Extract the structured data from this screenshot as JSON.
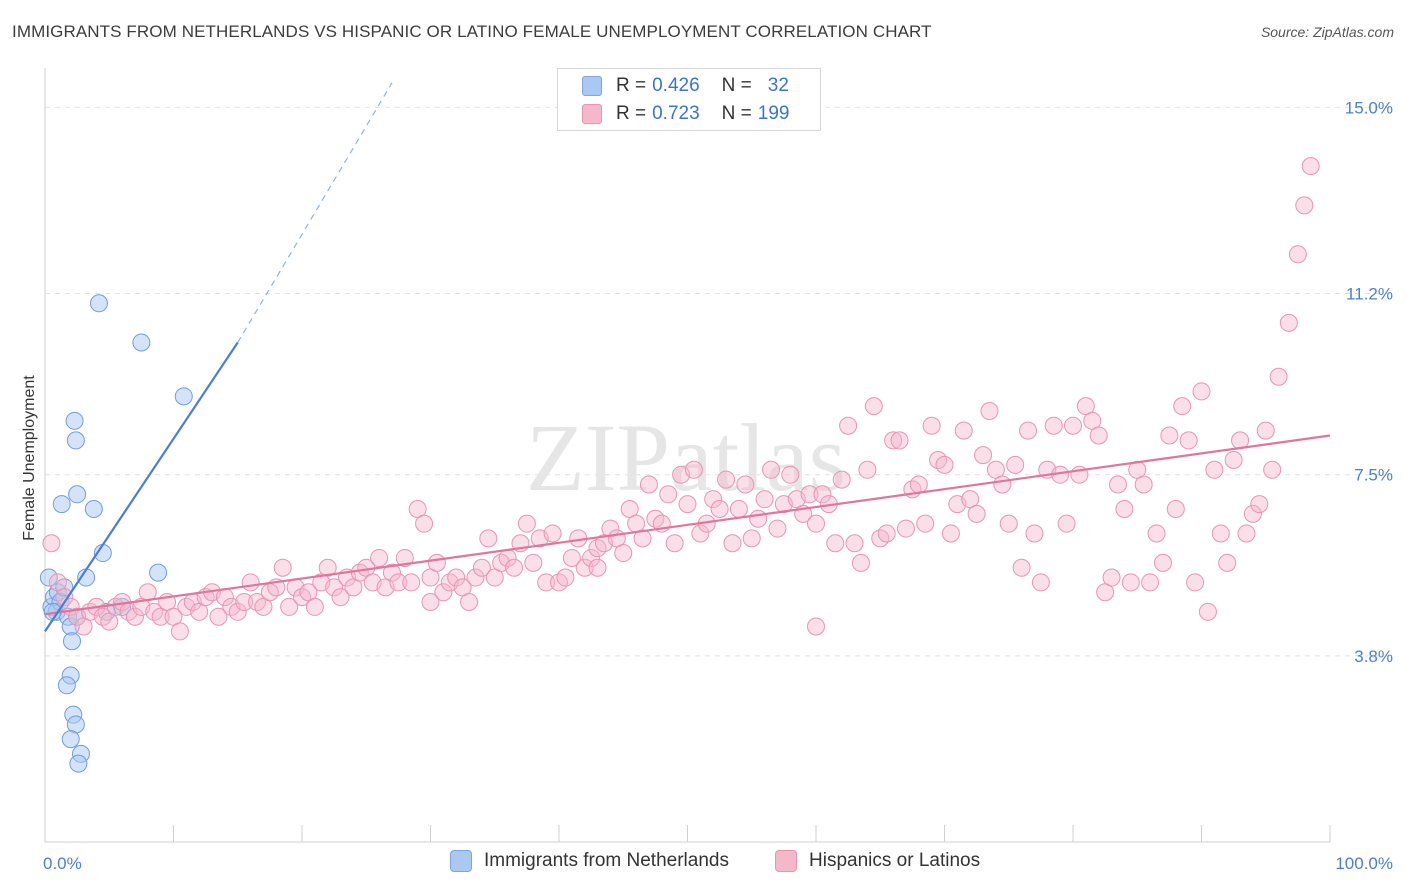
{
  "title": "IMMIGRANTS FROM NETHERLANDS VS HISPANIC OR LATINO FEMALE UNEMPLOYMENT CORRELATION CHART",
  "source": "Source: ZipAtlas.com",
  "watermark": "ZIPatlas",
  "legend": {
    "series1": {
      "r_label": "R =",
      "r_value": "0.426",
      "n_label": "N =",
      "n_value": "32",
      "color": "#aac8f2"
    },
    "series2": {
      "r_label": "R =",
      "r_value": "0.723",
      "n_label": "N =",
      "n_value": "199",
      "color": "#f5b8cb"
    }
  },
  "chart_data": {
    "type": "scatter",
    "title": "IMMIGRANTS FROM NETHERLANDS VS HISPANIC OR LATINO FEMALE UNEMPLOYMENT CORRELATION CHART",
    "xlabel": "",
    "ylabel": "Female Unemployment",
    "xlim": [
      0,
      100
    ],
    "ylim": [
      0,
      15.6
    ],
    "x_tick_labels": [
      "0.0%",
      "100.0%"
    ],
    "y_ticks": [
      3.8,
      7.5,
      11.2,
      15.0
    ],
    "y_tick_labels": [
      "3.8%",
      "7.5%",
      "11.2%",
      "15.0%"
    ],
    "series": [
      {
        "name": "Immigrants from Netherlands",
        "color": "#4a7fd4",
        "fill": "#aac8f2",
        "trend": {
          "x0": 0,
          "y0": 4.3,
          "x1": 15,
          "y1": 10.2,
          "dash_to_x": 27,
          "dash_to_y": 15.5
        },
        "points": [
          [
            0.3,
            5.4
          ],
          [
            0.5,
            4.8
          ],
          [
            0.7,
            5.0
          ],
          [
            0.9,
            4.7
          ],
          [
            1.0,
            5.1
          ],
          [
            1.2,
            4.9
          ],
          [
            1.5,
            5.2
          ],
          [
            1.8,
            4.6
          ],
          [
            2.0,
            4.4
          ],
          [
            2.1,
            4.1
          ],
          [
            2.3,
            8.6
          ],
          [
            2.4,
            8.2
          ],
          [
            2.5,
            7.1
          ],
          [
            1.3,
            6.9
          ],
          [
            3.8,
            6.8
          ],
          [
            4.5,
            5.9
          ],
          [
            3.2,
            5.4
          ],
          [
            8.8,
            5.5
          ],
          [
            7.5,
            10.2
          ],
          [
            4.2,
            11.0
          ],
          [
            10.8,
            9.1
          ],
          [
            2.5,
            4.6
          ],
          [
            2.0,
            3.4
          ],
          [
            1.7,
            3.2
          ],
          [
            2.2,
            2.6
          ],
          [
            2.4,
            2.4
          ],
          [
            2.0,
            2.1
          ],
          [
            2.8,
            1.8
          ],
          [
            2.6,
            1.6
          ],
          [
            6.0,
            4.8
          ],
          [
            4.8,
            4.7
          ],
          [
            0.6,
            4.7
          ]
        ]
      },
      {
        "name": "Hispanics or Latinos",
        "color": "#e3749a",
        "fill": "#f5b8cb",
        "trend": {
          "x0": 0,
          "y0": 4.65,
          "x1": 100,
          "y1": 8.3
        },
        "points": [
          [
            0.5,
            6.1
          ],
          [
            1.0,
            5.3
          ],
          [
            1.5,
            5.0
          ],
          [
            2.0,
            4.8
          ],
          [
            2.5,
            4.6
          ],
          [
            3.0,
            4.4
          ],
          [
            3.5,
            4.7
          ],
          [
            4.0,
            4.8
          ],
          [
            4.5,
            4.6
          ],
          [
            5.0,
            4.5
          ],
          [
            5.5,
            4.8
          ],
          [
            6.0,
            4.9
          ],
          [
            6.5,
            4.7
          ],
          [
            7.0,
            4.6
          ],
          [
            7.5,
            4.8
          ],
          [
            8.0,
            5.1
          ],
          [
            8.5,
            4.7
          ],
          [
            9.0,
            4.6
          ],
          [
            9.5,
            4.9
          ],
          [
            10.0,
            4.6
          ],
          [
            10.5,
            4.3
          ],
          [
            11.0,
            4.8
          ],
          [
            11.5,
            4.9
          ],
          [
            12.0,
            4.7
          ],
          [
            12.5,
            5.0
          ],
          [
            13.0,
            5.1
          ],
          [
            13.5,
            4.6
          ],
          [
            14.0,
            5.0
          ],
          [
            14.5,
            4.8
          ],
          [
            15.0,
            4.7
          ],
          [
            15.5,
            4.9
          ],
          [
            16.0,
            5.3
          ],
          [
            16.5,
            4.9
          ],
          [
            17.0,
            4.8
          ],
          [
            17.5,
            5.1
          ],
          [
            18.0,
            5.2
          ],
          [
            18.5,
            5.6
          ],
          [
            19.0,
            4.8
          ],
          [
            19.5,
            5.2
          ],
          [
            20.0,
            5.0
          ],
          [
            20.5,
            5.1
          ],
          [
            21.0,
            4.8
          ],
          [
            21.5,
            5.3
          ],
          [
            22.0,
            5.6
          ],
          [
            22.5,
            5.2
          ],
          [
            23.0,
            5.0
          ],
          [
            23.5,
            5.4
          ],
          [
            24.0,
            5.2
          ],
          [
            24.5,
            5.5
          ],
          [
            25.0,
            5.6
          ],
          [
            25.5,
            5.3
          ],
          [
            26.0,
            5.8
          ],
          [
            26.5,
            5.2
          ],
          [
            27.0,
            5.5
          ],
          [
            27.5,
            5.3
          ],
          [
            28.0,
            5.8
          ],
          [
            28.5,
            5.3
          ],
          [
            29.0,
            6.8
          ],
          [
            29.5,
            6.5
          ],
          [
            30.0,
            5.4
          ],
          [
            30.5,
            5.7
          ],
          [
            31.0,
            5.1
          ],
          [
            31.5,
            5.3
          ],
          [
            32.0,
            5.4
          ],
          [
            32.5,
            5.2
          ],
          [
            33.0,
            4.9
          ],
          [
            33.5,
            5.4
          ],
          [
            34.0,
            5.6
          ],
          [
            34.5,
            6.2
          ],
          [
            35.0,
            5.4
          ],
          [
            35.5,
            5.7
          ],
          [
            36.0,
            5.8
          ],
          [
            36.5,
            5.6
          ],
          [
            37.0,
            6.1
          ],
          [
            37.5,
            6.5
          ],
          [
            38.0,
            5.7
          ],
          [
            38.5,
            6.2
          ],
          [
            39.0,
            5.3
          ],
          [
            39.5,
            6.3
          ],
          [
            40.0,
            5.3
          ],
          [
            40.5,
            5.4
          ],
          [
            41.0,
            5.8
          ],
          [
            41.5,
            6.2
          ],
          [
            42.0,
            5.6
          ],
          [
            42.5,
            5.8
          ],
          [
            43.0,
            6.0
          ],
          [
            43.5,
            6.1
          ],
          [
            44.0,
            6.4
          ],
          [
            44.5,
            6.2
          ],
          [
            45.0,
            5.9
          ],
          [
            45.5,
            6.8
          ],
          [
            46.0,
            6.5
          ],
          [
            46.5,
            6.2
          ],
          [
            47.0,
            7.3
          ],
          [
            47.5,
            6.6
          ],
          [
            48.0,
            6.5
          ],
          [
            48.5,
            7.1
          ],
          [
            49.0,
            6.1
          ],
          [
            49.5,
            7.5
          ],
          [
            50.0,
            6.9
          ],
          [
            50.5,
            7.6
          ],
          [
            51.0,
            6.3
          ],
          [
            51.5,
            6.5
          ],
          [
            52.0,
            7.0
          ],
          [
            52.5,
            6.8
          ],
          [
            53.0,
            7.4
          ],
          [
            53.5,
            6.1
          ],
          [
            54.0,
            6.8
          ],
          [
            54.5,
            7.3
          ],
          [
            55.0,
            6.2
          ],
          [
            55.5,
            6.6
          ],
          [
            56.0,
            7.0
          ],
          [
            56.5,
            7.6
          ],
          [
            57.0,
            6.4
          ],
          [
            57.5,
            6.9
          ],
          [
            58.0,
            7.5
          ],
          [
            58.5,
            7.0
          ],
          [
            59.0,
            6.7
          ],
          [
            59.5,
            7.1
          ],
          [
            60.0,
            6.5
          ],
          [
            60.5,
            7.1
          ],
          [
            61.0,
            6.9
          ],
          [
            61.5,
            6.1
          ],
          [
            62.0,
            7.4
          ],
          [
            62.5,
            8.5
          ],
          [
            63.0,
            6.1
          ],
          [
            63.5,
            5.7
          ],
          [
            64.0,
            7.6
          ],
          [
            64.5,
            8.9
          ],
          [
            65.0,
            6.2
          ],
          [
            65.5,
            6.3
          ],
          [
            66.0,
            8.2
          ],
          [
            66.5,
            8.2
          ],
          [
            67.0,
            6.4
          ],
          [
            67.5,
            7.2
          ],
          [
            68.0,
            7.3
          ],
          [
            68.5,
            6.5
          ],
          [
            69.0,
            8.5
          ],
          [
            69.5,
            7.8
          ],
          [
            70.0,
            7.7
          ],
          [
            70.5,
            6.3
          ],
          [
            71.0,
            6.9
          ],
          [
            71.5,
            8.4
          ],
          [
            72.0,
            7.0
          ],
          [
            72.5,
            6.7
          ],
          [
            73.0,
            7.9
          ],
          [
            73.5,
            8.8
          ],
          [
            74.0,
            7.6
          ],
          [
            74.5,
            7.3
          ],
          [
            75.0,
            6.5
          ],
          [
            75.5,
            7.7
          ],
          [
            76.0,
            5.6
          ],
          [
            76.5,
            8.4
          ],
          [
            77.0,
            6.3
          ],
          [
            77.5,
            5.3
          ],
          [
            78.0,
            7.6
          ],
          [
            78.5,
            8.5
          ],
          [
            79.0,
            7.5
          ],
          [
            79.5,
            6.5
          ],
          [
            80.0,
            8.5
          ],
          [
            80.5,
            7.5
          ],
          [
            81.0,
            8.9
          ],
          [
            81.5,
            8.6
          ],
          [
            82.0,
            8.3
          ],
          [
            82.5,
            5.1
          ],
          [
            83.0,
            5.4
          ],
          [
            83.5,
            7.3
          ],
          [
            84.0,
            6.8
          ],
          [
            84.5,
            5.3
          ],
          [
            85.0,
            7.6
          ],
          [
            85.5,
            7.3
          ],
          [
            86.0,
            5.3
          ],
          [
            86.5,
            6.3
          ],
          [
            87.0,
            5.7
          ],
          [
            87.5,
            8.3
          ],
          [
            88.0,
            6.8
          ],
          [
            88.5,
            8.9
          ],
          [
            89.0,
            8.2
          ],
          [
            89.5,
            5.3
          ],
          [
            90.0,
            9.2
          ],
          [
            90.5,
            4.7
          ],
          [
            91.0,
            7.6
          ],
          [
            91.5,
            6.3
          ],
          [
            92.0,
            5.7
          ],
          [
            92.5,
            7.8
          ],
          [
            93.0,
            8.2
          ],
          [
            93.5,
            6.3
          ],
          [
            94.0,
            6.7
          ],
          [
            94.5,
            6.9
          ],
          [
            95.0,
            8.4
          ],
          [
            95.5,
            7.6
          ],
          [
            96.0,
            9.5
          ],
          [
            96.8,
            10.6
          ],
          [
            97.5,
            12.0
          ],
          [
            98.0,
            13.0
          ],
          [
            98.5,
            13.8
          ],
          [
            30.0,
            4.9
          ],
          [
            60.0,
            4.4
          ],
          [
            43.0,
            5.6
          ]
        ]
      }
    ]
  },
  "bottom_legend": {
    "item1": "Immigrants from Netherlands",
    "item2": "Hispanics or Latinos"
  }
}
